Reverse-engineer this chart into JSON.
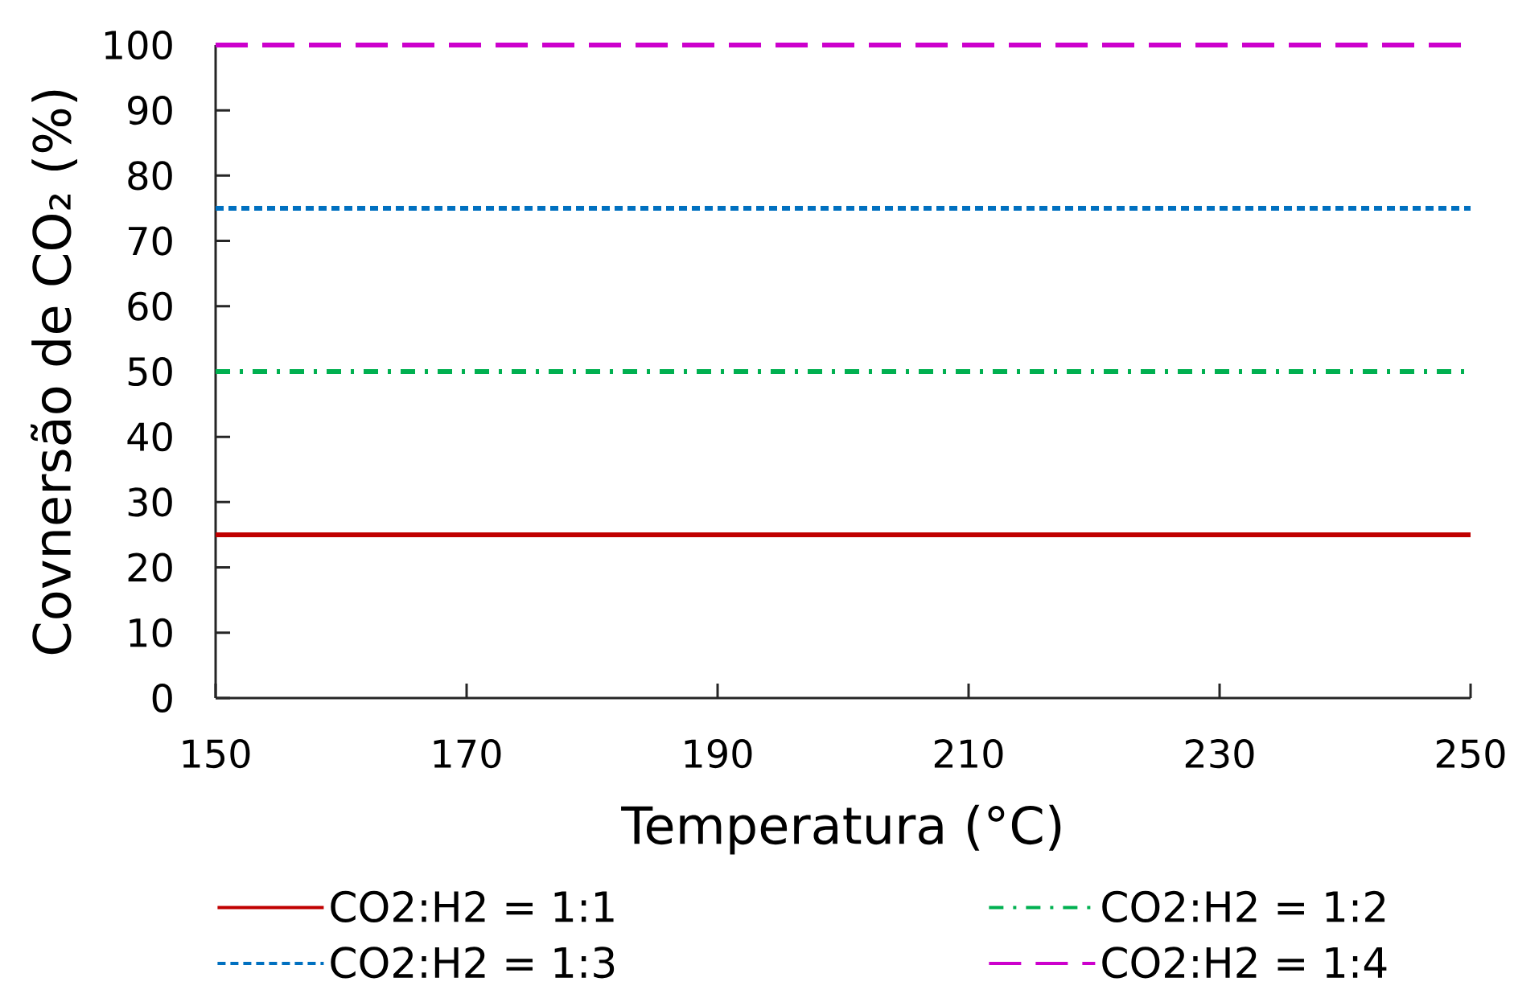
{
  "chart_data": {
    "type": "line",
    "xlabel": "Temperatura (°C)",
    "ylabel": "Covnersão de CO₂ (%)",
    "x": [
      150,
      250
    ],
    "series": [
      {
        "name": "CO2:H2 = 1:1",
        "color": "#c00000",
        "values": [
          25,
          25
        ],
        "line_style": "solid"
      },
      {
        "name": "CO2:H2 = 1:2",
        "color": "#00b050",
        "values": [
          50,
          50
        ],
        "line_style": "dashdot"
      },
      {
        "name": "CO2:H2 = 1:3",
        "color": "#0070c0",
        "values": [
          75,
          75
        ],
        "line_style": "dotted"
      },
      {
        "name": "CO2:H2 = 1:4",
        "color": "#cc00cc",
        "values": [
          100,
          100
        ],
        "line_style": "dashed"
      }
    ],
    "xlim": [
      150,
      250
    ],
    "xticks": [
      150,
      170,
      190,
      210,
      230,
      250
    ],
    "ylim": [
      0,
      100
    ],
    "yticks": [
      0,
      10,
      20,
      30,
      40,
      50,
      60,
      70,
      80,
      90,
      100
    ],
    "legend": "bottom"
  }
}
